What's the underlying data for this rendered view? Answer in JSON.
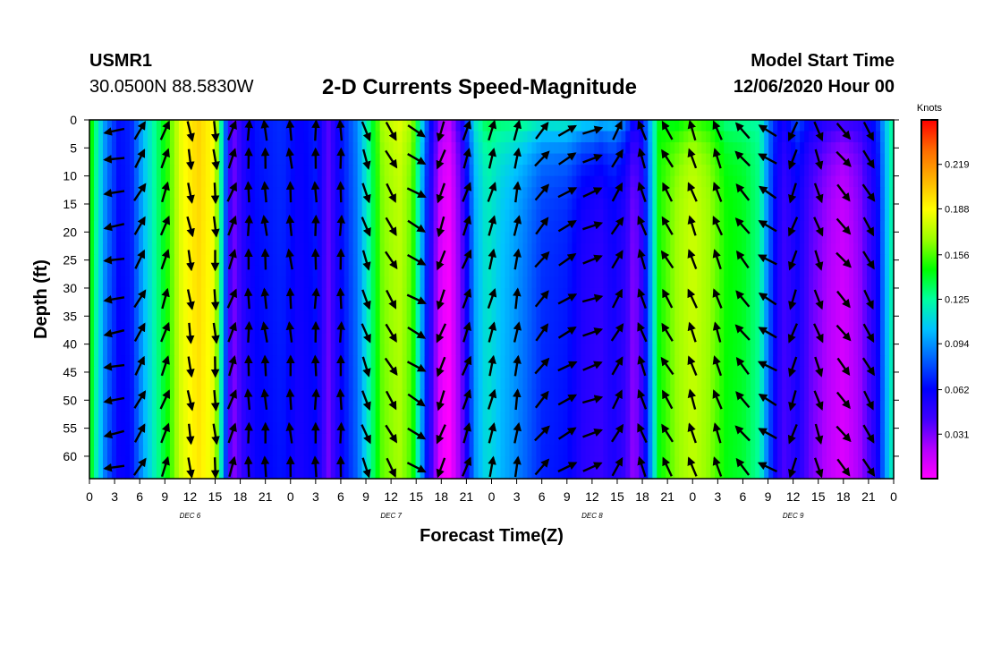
{
  "header": {
    "station": "USMR1",
    "location": "30.0500N 88.5830W",
    "title": "2-D Currents Speed-Magnitude",
    "start_label": "Model Start Time",
    "start_value": "12/06/2020 Hour 00"
  },
  "chart_data": {
    "type": "heatmap",
    "title": "2-D Currents Speed-Magnitude",
    "xlabel": "Forecast Time(Z)",
    "ylabel": "Depth (ft)",
    "x_range_hours": [
      0,
      96
    ],
    "y_range_ft": [
      0,
      64
    ],
    "y_ticks": [
      0,
      5,
      10,
      15,
      20,
      25,
      30,
      35,
      40,
      45,
      50,
      55,
      60
    ],
    "x_tick_hours": [
      0,
      3,
      6,
      9,
      12,
      15,
      18,
      21,
      24,
      27,
      30,
      33,
      36,
      39,
      42,
      45,
      48,
      51,
      54,
      57,
      60,
      63,
      66,
      69,
      72,
      75,
      78,
      81,
      84,
      87,
      90,
      93,
      96
    ],
    "x_tick_labels": [
      "0",
      "3",
      "6",
      "9",
      "12",
      "15",
      "18",
      "21",
      "0",
      "3",
      "6",
      "9",
      "12",
      "15",
      "18",
      "21",
      "0",
      "3",
      "6",
      "9",
      "12",
      "15",
      "18",
      "21",
      "0",
      "3",
      "6",
      "9",
      "12",
      "15",
      "18",
      "21",
      "0"
    ],
    "date_labels": [
      {
        "hour": 12,
        "text": "DEC 6"
      },
      {
        "hour": 36,
        "text": "DEC 7"
      },
      {
        "hour": 60,
        "text": "DEC 8"
      },
      {
        "hour": 84,
        "text": "DEC 9"
      }
    ],
    "colorbar": {
      "unit": "Knots",
      "min": 0.0,
      "max": 0.25,
      "ticks": [
        0.219,
        0.188,
        0.156,
        0.125,
        0.094,
        0.062,
        0.031
      ],
      "colors": [
        "#ff00ff",
        "#b300ff",
        "#3f00ff",
        "#0000ff",
        "#0061ff",
        "#00c3ff",
        "#00ff9f",
        "#00ff00",
        "#9bff00",
        "#ffff00",
        "#ffb400",
        "#ff6a00",
        "#ff0000"
      ]
    },
    "speed_profile": [
      {
        "t": 0,
        "v": 0.155
      },
      {
        "t": 1,
        "v": 0.12
      },
      {
        "t": 2,
        "v": 0.09
      },
      {
        "t": 3.5,
        "v": 0.065
      },
      {
        "t": 5,
        "v": 0.07
      },
      {
        "t": 6.5,
        "v": 0.105
      },
      {
        "t": 8,
        "v": 0.13
      },
      {
        "t": 9.5,
        "v": 0.155
      },
      {
        "t": 11,
        "v": 0.185
      },
      {
        "t": 13,
        "v": 0.2
      },
      {
        "t": 15,
        "v": 0.185
      },
      {
        "t": 16,
        "v": 0.1
      },
      {
        "t": 17,
        "v": 0.03
      },
      {
        "t": 18.5,
        "v": 0.055
      },
      {
        "t": 20,
        "v": 0.066
      },
      {
        "t": 23,
        "v": 0.072
      },
      {
        "t": 25,
        "v": 0.06
      },
      {
        "t": 27,
        "v": 0.068
      },
      {
        "t": 28.5,
        "v": 0.038
      },
      {
        "t": 30,
        "v": 0.065
      },
      {
        "t": 32,
        "v": 0.09
      },
      {
        "t": 33.5,
        "v": 0.13
      },
      {
        "t": 35,
        "v": 0.165
      },
      {
        "t": 37,
        "v": 0.175
      },
      {
        "t": 38.5,
        "v": 0.16
      },
      {
        "t": 39.5,
        "v": 0.11
      },
      {
        "t": 40.5,
        "v": 0.06
      },
      {
        "t": 42,
        "v": 0.01
      },
      {
        "t": 43,
        "v": 0.005
      },
      {
        "t": 44.5,
        "v": 0.04
      },
      {
        "t": 46,
        "v": 0.1
      },
      {
        "t": 47.5,
        "v": 0.12
      },
      {
        "t": 49,
        "v": 0.108
      },
      {
        "t": 50.5,
        "v": 0.1
      },
      {
        "t": 52,
        "v": 0.09
      },
      {
        "t": 54,
        "v": 0.075
      },
      {
        "t": 57,
        "v": 0.07
      },
      {
        "t": 59,
        "v": 0.055
      },
      {
        "t": 61,
        "v": 0.05
      },
      {
        "t": 62.5,
        "v": 0.06
      },
      {
        "t": 64,
        "v": 0.05
      },
      {
        "t": 65,
        "v": 0.03
      },
      {
        "t": 66,
        "v": 0.05
      },
      {
        "t": 67,
        "v": 0.1
      },
      {
        "t": 68,
        "v": 0.15
      },
      {
        "t": 70,
        "v": 0.17
      },
      {
        "t": 72,
        "v": 0.18
      },
      {
        "t": 74,
        "v": 0.17
      },
      {
        "t": 76,
        "v": 0.15
      },
      {
        "t": 78,
        "v": 0.145
      },
      {
        "t": 80,
        "v": 0.13
      },
      {
        "t": 81,
        "v": 0.09
      },
      {
        "t": 82,
        "v": 0.06
      },
      {
        "t": 83,
        "v": 0.045
      },
      {
        "t": 84.5,
        "v": 0.06
      },
      {
        "t": 86,
        "v": 0.04
      },
      {
        "t": 88,
        "v": 0.025
      },
      {
        "t": 90,
        "v": 0.015
      },
      {
        "t": 92,
        "v": 0.03
      },
      {
        "t": 94,
        "v": 0.06
      },
      {
        "t": 95,
        "v": 0.1
      },
      {
        "t": 96,
        "v": 0.13
      }
    ],
    "surface_adjust": [
      {
        "t": 0,
        "v": 0.0
      },
      {
        "t": 10,
        "v": 0.0
      },
      {
        "t": 30,
        "v": 0.0
      },
      {
        "t": 48,
        "v": 0.02
      },
      {
        "t": 52,
        "v": 0.04
      },
      {
        "t": 56,
        "v": 0.05
      },
      {
        "t": 60,
        "v": 0.06
      },
      {
        "t": 64,
        "v": 0.04
      },
      {
        "t": 70,
        "v": -0.03
      },
      {
        "t": 78,
        "v": -0.02
      },
      {
        "t": 84,
        "v": 0.02
      },
      {
        "t": 90,
        "v": 0.03
      },
      {
        "t": 96,
        "v": 0.0
      }
    ],
    "vectors": {
      "description": "Current direction arrows drawn every ~3 hours at depth rows",
      "depth_rows_ft": [
        1,
        6,
        12,
        18,
        24,
        31,
        37,
        43,
        49,
        55,
        61
      ],
      "direction_deg": [
        {
          "t": 0,
          "d": 300
        },
        {
          "t": 3,
          "d": 260
        },
        {
          "t": 6,
          "d": 30
        },
        {
          "t": 9,
          "d": 20
        },
        {
          "t": 12,
          "d": 170
        },
        {
          "t": 15,
          "d": 175
        },
        {
          "t": 17,
          "d": 20
        },
        {
          "t": 19,
          "d": 0
        },
        {
          "t": 21,
          "d": 355
        },
        {
          "t": 24,
          "d": 355
        },
        {
          "t": 27,
          "d": 0
        },
        {
          "t": 30,
          "d": 0
        },
        {
          "t": 33,
          "d": 160
        },
        {
          "t": 36,
          "d": 150
        },
        {
          "t": 39,
          "d": 120
        },
        {
          "t": 42,
          "d": 200
        },
        {
          "t": 45,
          "d": 20
        },
        {
          "t": 48,
          "d": 15
        },
        {
          "t": 51,
          "d": 10
        },
        {
          "t": 54,
          "d": 40
        },
        {
          "t": 57,
          "d": 60
        },
        {
          "t": 60,
          "d": 70
        },
        {
          "t": 63,
          "d": 30
        },
        {
          "t": 66,
          "d": 340
        },
        {
          "t": 69,
          "d": 330
        },
        {
          "t": 72,
          "d": 340
        },
        {
          "t": 75,
          "d": 340
        },
        {
          "t": 78,
          "d": 320
        },
        {
          "t": 81,
          "d": 300
        },
        {
          "t": 84,
          "d": 200
        },
        {
          "t": 87,
          "d": 160
        },
        {
          "t": 90,
          "d": 140
        },
        {
          "t": 93,
          "d": 150
        },
        {
          "t": 96,
          "d": 170
        }
      ]
    }
  }
}
